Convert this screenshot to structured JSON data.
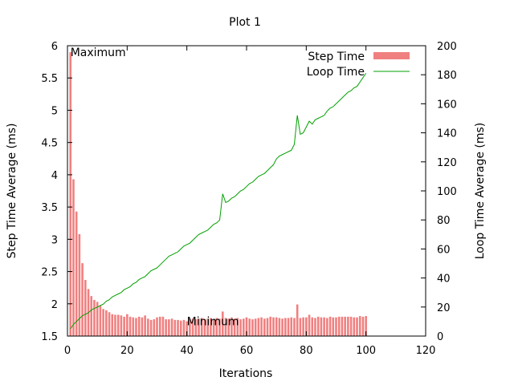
{
  "chart_data": {
    "type": "bar+line",
    "title": "Plot 1",
    "xlabel": "Iterations",
    "ylabel": "Step Time Average (ms)",
    "y2label": "Loop Time Average (ms)",
    "xlim": [
      0,
      120
    ],
    "ylim": [
      1.5,
      6
    ],
    "y2lim": [
      0,
      200
    ],
    "xticks": [
      "0",
      "20",
      "40",
      "60",
      "80",
      "100",
      "120"
    ],
    "yticks": [
      "1.5",
      "2",
      "2.5",
      "3",
      "3.5",
      "4",
      "4.5",
      "5",
      "5.5",
      "6"
    ],
    "y2ticks": [
      "0",
      "20",
      "40",
      "60",
      "80",
      "100",
      "120",
      "140",
      "160",
      "180",
      "200"
    ],
    "grid": false,
    "legend_position": "top-right",
    "colors": {
      "step": "#f08080",
      "loop": "#00a000"
    },
    "annotations": [
      {
        "text": "Maximum",
        "x": 1,
        "y": 5.9
      },
      {
        "text": "Minimum",
        "x": 40,
        "y": 1.73
      }
    ],
    "series": [
      {
        "name": "Step Time",
        "type": "bar",
        "axis": "y",
        "x": [
          1,
          2,
          3,
          4,
          5,
          6,
          7,
          8,
          9,
          10,
          11,
          12,
          13,
          14,
          15,
          16,
          17,
          18,
          19,
          20,
          21,
          22,
          23,
          24,
          25,
          26,
          27,
          28,
          29,
          30,
          31,
          32,
          33,
          34,
          35,
          36,
          37,
          38,
          39,
          40,
          41,
          42,
          43,
          44,
          45,
          46,
          47,
          48,
          49,
          50,
          51,
          52,
          53,
          54,
          55,
          56,
          57,
          58,
          59,
          60,
          61,
          62,
          63,
          64,
          65,
          66,
          67,
          68,
          69,
          70,
          71,
          72,
          73,
          74,
          75,
          76,
          77,
          78,
          79,
          80,
          81,
          82,
          83,
          84,
          85,
          86,
          87,
          88,
          89,
          90,
          91,
          92,
          93,
          94,
          95,
          96,
          97,
          98,
          99,
          100
        ],
        "values": [
          5.9,
          3.93,
          3.43,
          3.08,
          2.63,
          2.37,
          2.23,
          2.12,
          2.06,
          2.03,
          1.97,
          1.92,
          1.9,
          1.87,
          1.84,
          1.83,
          1.83,
          1.82,
          1.8,
          1.84,
          1.8,
          1.79,
          1.78,
          1.8,
          1.79,
          1.82,
          1.77,
          1.75,
          1.76,
          1.79,
          1.8,
          1.8,
          1.76,
          1.76,
          1.77,
          1.75,
          1.75,
          1.74,
          1.75,
          1.73,
          1.76,
          1.77,
          1.76,
          1.77,
          1.78,
          1.76,
          1.77,
          1.78,
          1.76,
          1.78,
          1.77,
          1.88,
          1.78,
          1.77,
          1.79,
          1.77,
          1.78,
          1.76,
          1.77,
          1.79,
          1.77,
          1.76,
          1.77,
          1.78,
          1.79,
          1.77,
          1.78,
          1.8,
          1.79,
          1.79,
          1.78,
          1.77,
          1.78,
          1.78,
          1.79,
          1.78,
          1.99,
          1.78,
          1.79,
          1.79,
          1.83,
          1.79,
          1.78,
          1.8,
          1.79,
          1.79,
          1.78,
          1.8,
          1.79,
          1.79,
          1.8,
          1.8,
          1.8,
          1.8,
          1.8,
          1.79,
          1.79,
          1.81,
          1.8,
          1.81
        ]
      },
      {
        "name": "Loop Time",
        "type": "line",
        "axis": "y2",
        "x": [
          1,
          2,
          3,
          4,
          5,
          6,
          7,
          8,
          9,
          10,
          11,
          12,
          13,
          14,
          15,
          16,
          17,
          18,
          19,
          20,
          21,
          22,
          23,
          24,
          25,
          26,
          27,
          28,
          29,
          30,
          31,
          32,
          33,
          34,
          35,
          36,
          37,
          38,
          39,
          40,
          41,
          42,
          43,
          44,
          45,
          46,
          47,
          48,
          49,
          50,
          51,
          52,
          53,
          54,
          55,
          56,
          57,
          58,
          59,
          60,
          61,
          62,
          63,
          64,
          65,
          66,
          67,
          68,
          69,
          70,
          71,
          72,
          73,
          74,
          75,
          76,
          77,
          78,
          79,
          80,
          81,
          82,
          83,
          84,
          85,
          86,
          87,
          88,
          89,
          90,
          91,
          92,
          93,
          94,
          95,
          96,
          97,
          98,
          99,
          100
        ],
        "values": [
          5,
          8,
          10,
          12,
          14,
          15,
          16,
          18,
          19,
          20,
          21,
          22,
          24,
          25,
          27,
          28,
          29,
          30,
          32,
          33,
          34,
          36,
          37,
          39,
          40,
          41,
          43,
          45,
          46,
          47,
          49,
          51,
          53,
          55,
          56,
          57,
          58,
          60,
          62,
          63,
          64,
          66,
          68,
          70,
          71,
          72,
          73,
          75,
          77,
          78,
          80,
          98,
          92,
          93,
          95,
          96,
          98,
          100,
          101,
          103,
          105,
          106,
          108,
          110,
          111,
          112,
          114,
          116,
          118,
          122,
          124,
          125,
          126,
          127,
          128,
          132,
          152,
          139,
          140,
          144,
          148,
          146,
          149,
          150,
          151,
          152,
          155,
          157,
          158,
          160,
          162,
          164,
          166,
          168,
          169,
          171,
          172,
          175,
          178,
          181
        ]
      }
    ]
  }
}
